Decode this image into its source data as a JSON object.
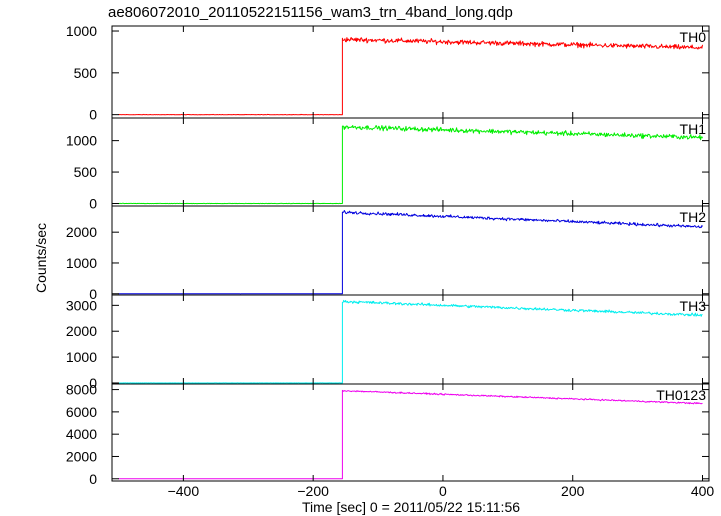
{
  "chart_data": {
    "type": "line",
    "title": "ae806072010_20110522151156_wam3_trn_4band_long.qdp",
    "xlabel": "Time [sec] 0 = 2011/05/22 15:11:56",
    "ylabel": "Counts/sec",
    "xlim": [
      -510,
      410
    ],
    "xticks": [
      -400,
      -200,
      0,
      200,
      400
    ],
    "xtick_labels": [
      "−400",
      "−200",
      "0",
      "200",
      "400"
    ],
    "step_time": -155,
    "grid": false,
    "panels": [
      {
        "name": "TH0",
        "color": "#ff0000",
        "ylim": [
          -40,
          1060
        ],
        "yticks": [
          0,
          500,
          1000
        ],
        "series": {
          "x_start": -500,
          "x_end": 400,
          "pre_level": 0,
          "post_start": 900,
          "post_end": 800,
          "noise": 55
        }
      },
      {
        "name": "TH1",
        "color": "#00ee00",
        "ylim": [
          -40,
          1360
        ],
        "yticks": [
          0,
          500,
          1000
        ],
        "series": {
          "x_start": -500,
          "x_end": 400,
          "pre_level": 0,
          "post_start": 1220,
          "post_end": 1050,
          "noise": 70
        }
      },
      {
        "name": "TH2",
        "color": "#0000dd",
        "ylim": [
          -40,
          2850
        ],
        "yticks": [
          0,
          1000,
          2000
        ],
        "series": {
          "x_start": -500,
          "x_end": 400,
          "pre_level": 0,
          "post_start": 2650,
          "post_end": 2170,
          "noise": 90
        }
      },
      {
        "name": "TH3",
        "color": "#00eeee",
        "ylim": [
          -40,
          3400
        ],
        "yticks": [
          0,
          1000,
          2000,
          3000
        ],
        "series": {
          "x_start": -500,
          "x_end": 400,
          "pre_level": 0,
          "post_start": 3150,
          "post_end": 2620,
          "noise": 100
        }
      },
      {
        "name": "TH0123",
        "color": "#ee00ee",
        "ylim": [
          -200,
          8500
        ],
        "yticks": [
          0,
          2000,
          4000,
          6000,
          8000
        ],
        "series": {
          "x_start": -500,
          "x_end": 400,
          "pre_level": 0,
          "post_start": 7900,
          "post_end": 6750,
          "noise": 120
        }
      }
    ]
  }
}
